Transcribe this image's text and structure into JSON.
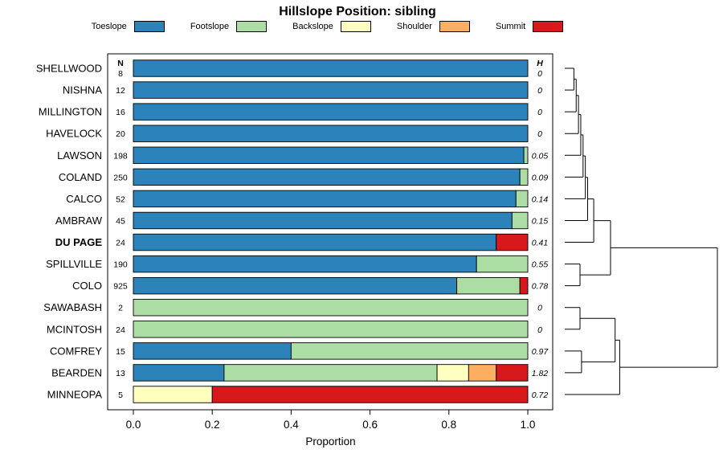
{
  "legend": [
    {
      "label": "Toeslope",
      "color": "#2B83BA"
    },
    {
      "label": "Footslope",
      "color": "#ABDDA4"
    },
    {
      "label": "Backslope",
      "color": "#FFFFBF"
    },
    {
      "label": "Shoulder",
      "color": "#FDAE61"
    },
    {
      "label": "Summit",
      "color": "#D7191C"
    }
  ],
  "columns": {
    "n_header": "N",
    "h_header": "H"
  },
  "chart_data": {
    "type": "bar",
    "stacked": true,
    "orientation": "horizontal",
    "title": "Hillslope Position: sibling",
    "xlabel": "Proportion",
    "xlim": [
      0,
      1.0
    ],
    "x_tick_labels": [
      "0.0",
      "0.2",
      "0.4",
      "0.6",
      "0.8",
      "1.0"
    ],
    "series_names": [
      "Toeslope",
      "Footslope",
      "Backslope",
      "Shoulder",
      "Summit"
    ],
    "rows": [
      {
        "label": "SHELLWOOD",
        "n": 8,
        "h": "0",
        "bold": false,
        "values": [
          1,
          0,
          0,
          0,
          0
        ]
      },
      {
        "label": "NISHNA",
        "n": 12,
        "h": "0",
        "bold": false,
        "values": [
          1,
          0,
          0,
          0,
          0
        ]
      },
      {
        "label": "MILLINGTON",
        "n": 16,
        "h": "0",
        "bold": false,
        "values": [
          1,
          0,
          0,
          0,
          0
        ]
      },
      {
        "label": "HAVELOCK",
        "n": 20,
        "h": "0",
        "bold": false,
        "values": [
          1,
          0,
          0,
          0,
          0
        ]
      },
      {
        "label": "LAWSON",
        "n": 198,
        "h": "0.05",
        "bold": false,
        "values": [
          0.99,
          0.01,
          0,
          0,
          0
        ]
      },
      {
        "label": "COLAND",
        "n": 250,
        "h": "0.09",
        "bold": false,
        "values": [
          0.98,
          0.02,
          0,
          0,
          0
        ]
      },
      {
        "label": "CALCO",
        "n": 52,
        "h": "0.14",
        "bold": false,
        "values": [
          0.97,
          0.03,
          0,
          0,
          0
        ]
      },
      {
        "label": "AMBRAW",
        "n": 45,
        "h": "0.15",
        "bold": false,
        "values": [
          0.96,
          0.04,
          0,
          0,
          0
        ]
      },
      {
        "label": "DU PAGE",
        "n": 24,
        "h": "0.41",
        "bold": true,
        "values": [
          0.92,
          0,
          0,
          0,
          0.08
        ]
      },
      {
        "label": "SPILLVILLE",
        "n": 190,
        "h": "0.55",
        "bold": false,
        "values": [
          0.87,
          0.13,
          0,
          0,
          0
        ]
      },
      {
        "label": "COLO",
        "n": 925,
        "h": "0.78",
        "bold": false,
        "values": [
          0.82,
          0.16,
          0,
          0,
          0.02
        ]
      },
      {
        "label": "SAWABASH",
        "n": 2,
        "h": "0",
        "bold": false,
        "values": [
          0,
          1,
          0,
          0,
          0
        ]
      },
      {
        "label": "MCINTOSH",
        "n": 24,
        "h": "0",
        "bold": false,
        "values": [
          0,
          1,
          0,
          0,
          0
        ]
      },
      {
        "label": "COMFREY",
        "n": 15,
        "h": "0.97",
        "bold": false,
        "values": [
          0.4,
          0.6,
          0,
          0,
          0
        ]
      },
      {
        "label": "BEARDEN",
        "n": 13,
        "h": "1.82",
        "bold": false,
        "values": [
          0.23,
          0.54,
          0.08,
          0.07,
          0.08
        ]
      },
      {
        "label": "MINNEOPA",
        "n": 5,
        "h": "0.72",
        "bold": false,
        "values": [
          0,
          0,
          0.2,
          0,
          0.8
        ]
      }
    ]
  },
  "dendrogram": {
    "merges": [
      {
        "children": [
          "L0",
          "L1"
        ],
        "h": 0.06
      },
      {
        "children": [
          "m0",
          "L2"
        ],
        "h": 0.075
      },
      {
        "children": [
          "m1",
          "L3"
        ],
        "h": 0.09
      },
      {
        "children": [
          "m2",
          "L4"
        ],
        "h": 0.105
      },
      {
        "children": [
          "m3",
          "L5"
        ],
        "h": 0.12
      },
      {
        "children": [
          "m4",
          "L6"
        ],
        "h": 0.135
      },
      {
        "children": [
          "m5",
          "L7"
        ],
        "h": 0.15
      },
      {
        "children": [
          "m6",
          "L8"
        ],
        "h": 0.19
      },
      {
        "children": [
          "L9",
          "L10"
        ],
        "h": 0.1
      },
      {
        "children": [
          "m7",
          "m8"
        ],
        "h": 0.3
      },
      {
        "children": [
          "L11",
          "L12"
        ],
        "h": 0.1
      },
      {
        "children": [
          "L13",
          "L14"
        ],
        "h": 0.11
      },
      {
        "children": [
          "m10",
          "m11"
        ],
        "h": 0.33
      },
      {
        "children": [
          "m12",
          "L15"
        ],
        "h": 0.36
      },
      {
        "children": [
          "m9",
          "m13"
        ],
        "h": 1.0
      }
    ]
  }
}
